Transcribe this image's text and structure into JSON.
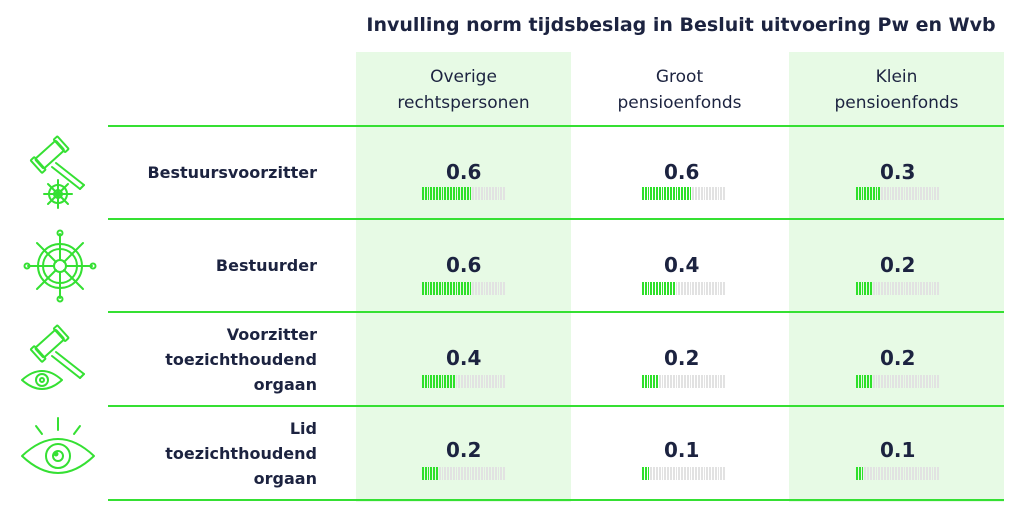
{
  "chart_data": {
    "type": "table",
    "title": "Invulling norm tijdsbeslag in Besluit uitvoering Pw en Wvb",
    "columns": [
      "Overige rechtspersonen",
      "Groot pensioenfonds",
      "Klein pensioenfonds"
    ],
    "column_lines": [
      [
        "Overige",
        "rechtspersonen"
      ],
      [
        "Groot",
        "pensioenfonds"
      ],
      [
        "Klein",
        "pensioenfonds"
      ]
    ],
    "rows": [
      {
        "label": "Bestuursvoorzitter",
        "label_lines": [
          "Bestuursvoorzitter"
        ],
        "icon": "gavel-and-helm-icon",
        "values": [
          0.6,
          0.6,
          0.3
        ]
      },
      {
        "label": "Bestuurder",
        "label_lines": [
          "Bestuurder"
        ],
        "icon": "ship-helm-icon",
        "values": [
          0.6,
          0.4,
          0.2
        ]
      },
      {
        "label": "Voorzitter toezichthoudend orgaan",
        "label_lines": [
          "Voorzitter",
          "toezichthoudend",
          "orgaan"
        ],
        "icon": "gavel-and-eye-icon",
        "values": [
          0.4,
          0.2,
          0.2
        ]
      },
      {
        "label": "Lid toezichthoudend orgaan",
        "label_lines": [
          "Lid",
          "toezichthoudend",
          "orgaan"
        ],
        "icon": "eye-icon",
        "values": [
          0.2,
          0.1,
          0.1
        ]
      }
    ],
    "value_labels": [
      [
        "0.6",
        "0.6",
        "0.3"
      ],
      [
        "0.6",
        "0.4",
        "0.2"
      ],
      [
        "0.4",
        "0.2",
        "0.2"
      ],
      [
        "0.2",
        "0.1",
        "0.1"
      ]
    ],
    "bar_scale": {
      "min": 0,
      "max": 1,
      "segments": 10
    },
    "colors": {
      "accent": "#35e033",
      "bar_filled": "#2ee02a",
      "bar_empty": "#e2e2e2",
      "column_band": "#e7fae5",
      "text": "#1c2340"
    }
  }
}
